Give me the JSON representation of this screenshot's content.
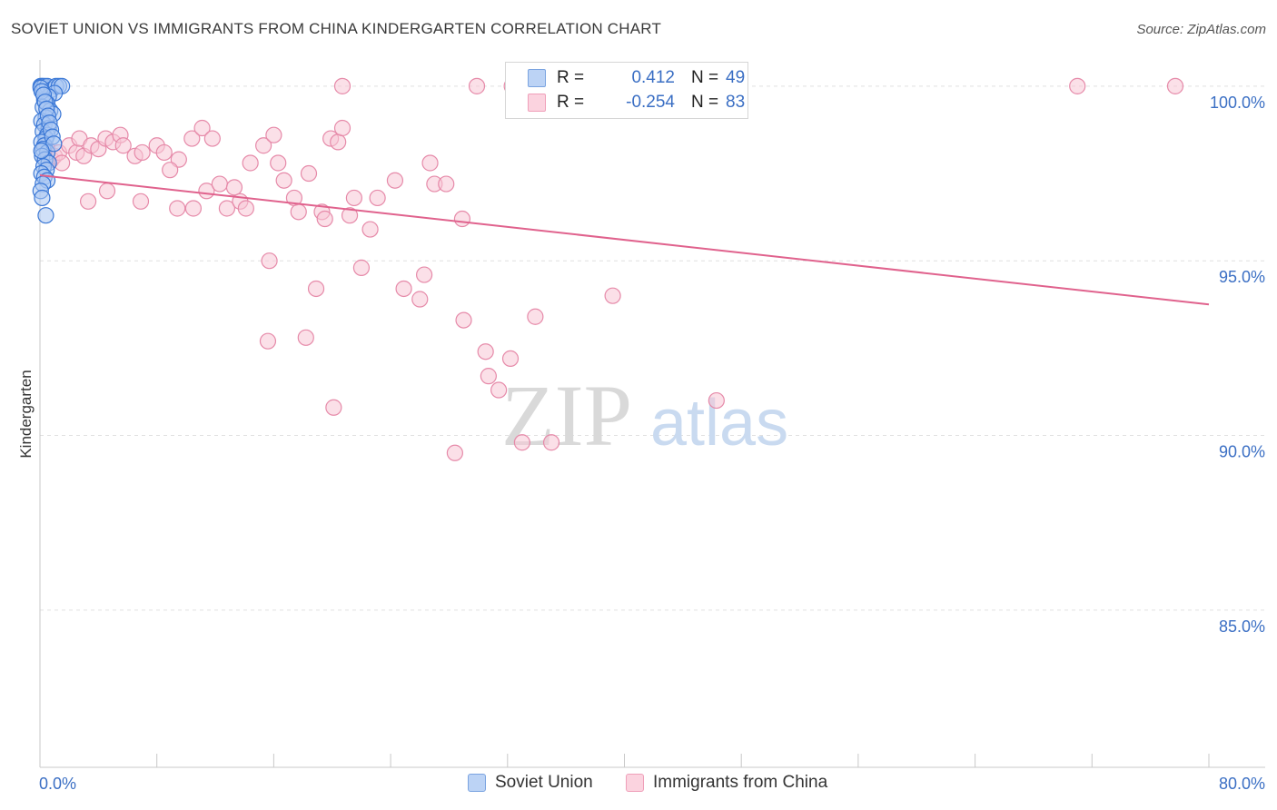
{
  "title": "SOVIET UNION VS IMMIGRANTS FROM CHINA KINDERGARTEN CORRELATION CHART",
  "source": "Source: ZipAtlas.com",
  "watermark": {
    "zip": "ZIP",
    "atlas": "atlas"
  },
  "colors": {
    "soviet_fill": "#a9c6f3",
    "soviet_stroke": "#3b78d6",
    "china_fill": "#f7c6d5",
    "china_stroke": "#e68aa9",
    "trend": "#e0628d",
    "axis_text": "#3b6fc4"
  },
  "stats": {
    "rows": [
      {
        "series": "Soviet Union",
        "r_label": "R =",
        "r_value": "0.412",
        "n_label": "N =",
        "n_value": "49"
      },
      {
        "series": "Immigrants from China",
        "r_label": "R =",
        "r_value": "-0.254",
        "n_label": "N =",
        "n_value": "83"
      }
    ]
  },
  "legend": {
    "items": [
      "Soviet Union",
      "Immigrants from China"
    ]
  },
  "chart_data": {
    "type": "scatter",
    "title": "SOVIET UNION VS IMMIGRANTS FROM CHINA KINDERGARTEN CORRELATION CHART",
    "xlabel": "",
    "ylabel": "Kindergarten",
    "xlim": [
      0,
      80
    ],
    "ylim": [
      80.5,
      100.75
    ],
    "x_tick_labels": [
      "0.0%",
      "80.0%"
    ],
    "y_ticks": [
      85,
      90,
      95,
      100
    ],
    "y_tick_labels": [
      "85.0%",
      "90.0%",
      "95.0%",
      "100.0%"
    ],
    "grid": true,
    "series": [
      {
        "name": "Soviet Union",
        "points": [
          [
            0.05,
            100.0
          ],
          [
            0.15,
            100.0
          ],
          [
            0.3,
            100.0
          ],
          [
            0.5,
            100.0
          ],
          [
            0.8,
            99.9
          ],
          [
            1.1,
            100.0
          ],
          [
            1.3,
            100.0
          ],
          [
            1.5,
            100.0
          ],
          [
            1.0,
            99.8
          ],
          [
            0.6,
            99.7
          ],
          [
            0.3,
            99.6
          ],
          [
            0.5,
            99.5
          ],
          [
            0.2,
            99.4
          ],
          [
            0.7,
            99.3
          ],
          [
            0.9,
            99.2
          ],
          [
            0.4,
            99.1
          ],
          [
            0.1,
            99.0
          ],
          [
            0.3,
            98.9
          ],
          [
            0.6,
            98.8
          ],
          [
            0.2,
            98.7
          ],
          [
            0.5,
            98.6
          ],
          [
            0.4,
            98.5
          ],
          [
            0.1,
            98.4
          ],
          [
            0.3,
            98.3
          ],
          [
            0.2,
            98.2
          ],
          [
            0.5,
            98.1
          ],
          [
            0.15,
            98.0
          ],
          [
            0.35,
            97.9
          ],
          [
            0.6,
            97.8
          ],
          [
            0.25,
            97.7
          ],
          [
            0.45,
            97.6
          ],
          [
            0.1,
            97.5
          ],
          [
            0.3,
            97.4
          ],
          [
            0.5,
            97.3
          ],
          [
            0.2,
            97.2
          ],
          [
            0.05,
            97.0
          ],
          [
            0.15,
            96.8
          ],
          [
            0.4,
            96.3
          ],
          [
            0.05,
            99.95
          ],
          [
            0.12,
            99.85
          ],
          [
            0.25,
            99.75
          ],
          [
            0.35,
            99.55
          ],
          [
            0.45,
            99.35
          ],
          [
            0.55,
            99.15
          ],
          [
            0.65,
            98.95
          ],
          [
            0.75,
            98.75
          ],
          [
            0.85,
            98.55
          ],
          [
            0.95,
            98.35
          ],
          [
            0.1,
            98.15
          ]
        ]
      },
      {
        "name": "Immigrants from China",
        "points": [
          [
            0.5,
            98.2
          ],
          [
            0.8,
            97.9
          ],
          [
            1.0,
            98.0
          ],
          [
            1.3,
            98.1
          ],
          [
            0.3,
            98.3
          ],
          [
            1.5,
            97.8
          ],
          [
            2.0,
            98.3
          ],
          [
            2.5,
            98.1
          ],
          [
            2.7,
            98.5
          ],
          [
            3.0,
            98.0
          ],
          [
            3.5,
            98.3
          ],
          [
            4.0,
            98.2
          ],
          [
            4.5,
            98.5
          ],
          [
            5.0,
            98.4
          ],
          [
            5.5,
            98.6
          ],
          [
            5.7,
            98.3
          ],
          [
            6.5,
            98.0
          ],
          [
            7.0,
            98.1
          ],
          [
            8.0,
            98.3
          ],
          [
            8.5,
            98.1
          ],
          [
            9.5,
            97.9
          ],
          [
            3.3,
            96.7
          ],
          [
            4.6,
            97.0
          ],
          [
            6.9,
            96.7
          ],
          [
            8.9,
            97.6
          ],
          [
            9.4,
            96.5
          ],
          [
            10.5,
            96.5
          ],
          [
            11.4,
            97.0
          ],
          [
            12.3,
            97.2
          ],
          [
            12.8,
            96.5
          ],
          [
            13.3,
            97.1
          ],
          [
            13.7,
            96.7
          ],
          [
            14.1,
            96.5
          ],
          [
            14.4,
            97.8
          ],
          [
            15.3,
            98.3
          ],
          [
            16.0,
            98.6
          ],
          [
            16.3,
            97.8
          ],
          [
            16.7,
            97.3
          ],
          [
            17.4,
            96.8
          ],
          [
            17.7,
            96.4
          ],
          [
            18.4,
            97.5
          ],
          [
            10.4,
            98.5
          ],
          [
            11.1,
            98.8
          ],
          [
            11.8,
            98.5
          ],
          [
            18.9,
            94.2
          ],
          [
            19.3,
            96.4
          ],
          [
            19.5,
            96.2
          ],
          [
            19.9,
            98.5
          ],
          [
            20.4,
            98.4
          ],
          [
            20.7,
            98.8
          ],
          [
            21.2,
            96.3
          ],
          [
            21.5,
            96.8
          ],
          [
            22.0,
            94.8
          ],
          [
            22.6,
            95.9
          ],
          [
            23.1,
            96.8
          ],
          [
            24.3,
            97.3
          ],
          [
            24.9,
            94.2
          ],
          [
            26.0,
            93.9
          ],
          [
            26.3,
            94.6
          ],
          [
            26.7,
            97.8
          ],
          [
            27.0,
            97.2
          ],
          [
            27.8,
            97.2
          ],
          [
            28.9,
            96.2
          ],
          [
            29.0,
            93.3
          ],
          [
            30.5,
            92.4
          ],
          [
            30.7,
            91.7
          ],
          [
            31.4,
            91.3
          ],
          [
            32.2,
            92.2
          ],
          [
            33.9,
            93.4
          ],
          [
            35.0,
            89.8
          ],
          [
            39.2,
            94.0
          ],
          [
            46.3,
            91.0
          ],
          [
            15.7,
            95.0
          ],
          [
            15.6,
            92.7
          ],
          [
            18.2,
            92.8
          ],
          [
            20.1,
            90.8
          ],
          [
            28.4,
            89.5
          ],
          [
            33.0,
            89.8
          ],
          [
            20.7,
            100.0
          ],
          [
            29.9,
            100.0
          ],
          [
            32.3,
            100.0
          ],
          [
            71.0,
            100.0
          ],
          [
            77.7,
            100.0
          ]
        ]
      }
    ],
    "trend_lines": [
      {
        "series": "Immigrants from China",
        "x": [
          0,
          80
        ],
        "y": [
          97.45,
          93.75
        ]
      }
    ]
  }
}
